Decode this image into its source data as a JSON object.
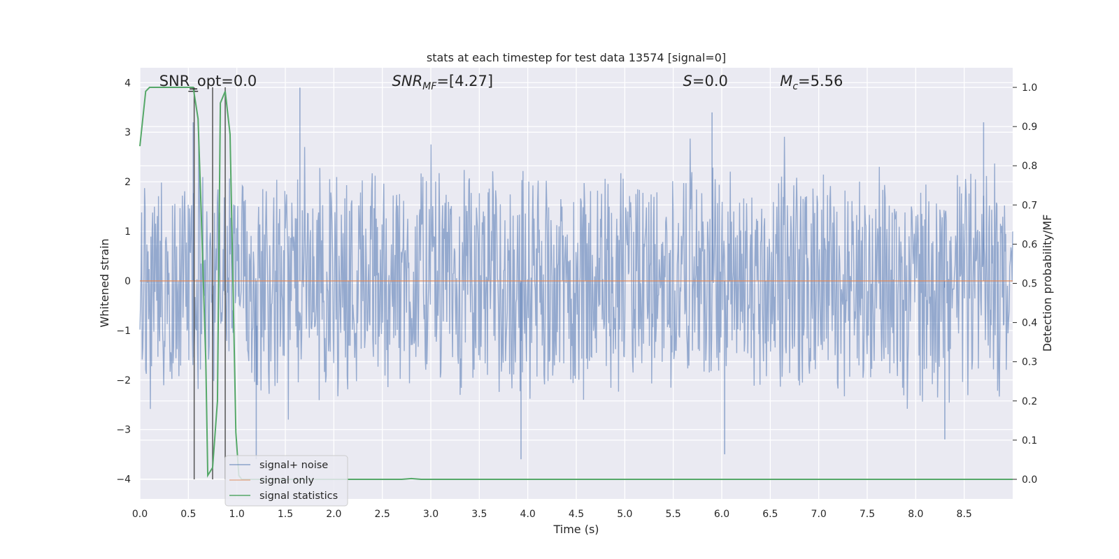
{
  "chart_data": {
    "type": "line",
    "title": "stats at each timestep for test data 13574 [signal=0]",
    "xlabel": "Time (s)",
    "ylabel_left": "Whitened strain",
    "ylabel_right": "Detection probability/MF",
    "xlim": [
      0.0,
      9.0
    ],
    "ylim_left": [
      -4.4,
      4.3
    ],
    "ylim_right": [
      -0.05,
      1.05
    ],
    "xticks": [
      "0.0",
      "0.5",
      "1.0",
      "1.5",
      "2.0",
      "2.5",
      "3.0",
      "3.5",
      "4.0",
      "4.5",
      "5.0",
      "5.5",
      "6.0",
      "6.5",
      "7.0",
      "7.5",
      "8.0",
      "8.5"
    ],
    "xtick_values": [
      0.0,
      0.5,
      1.0,
      1.5,
      2.0,
      2.5,
      3.0,
      3.5,
      4.0,
      4.5,
      5.0,
      5.5,
      6.0,
      6.5,
      7.0,
      7.5,
      8.0,
      8.5
    ],
    "yticks_left": [
      "−4",
      "−3",
      "−2",
      "−1",
      "0",
      "1",
      "2",
      "3",
      "4"
    ],
    "ytick_values_left": [
      -4,
      -3,
      -2,
      -1,
      0,
      1,
      2,
      3,
      4
    ],
    "yticks_right": [
      "0.0",
      "0.1",
      "0.2",
      "0.3",
      "0.4",
      "0.5",
      "0.6",
      "0.7",
      "0.8",
      "0.9",
      "1.0"
    ],
    "ytick_values_right": [
      0.0,
      0.1,
      0.2,
      0.3,
      0.4,
      0.5,
      0.6,
      0.7,
      0.8,
      0.9,
      1.0
    ],
    "grid": true,
    "legend_position": "lower-left",
    "annotations": [
      {
        "text": "SNR_opt=0.0",
        "x": 0.2
      },
      {
        "text": "SNR",
        "sub": "MF",
        "suffix": "=[4.27]",
        "italic": true,
        "x": 2.6
      },
      {
        "text": "S",
        "suffix": "=0.0",
        "italic": true,
        "x": 5.6
      },
      {
        "text": "M",
        "sub": "c",
        "suffix": "=5.56",
        "italic": true,
        "x": 6.6
      }
    ],
    "series": [
      {
        "name": "signal+ noise",
        "color": "#4c72b0",
        "axis": "left",
        "amplitude_envelope": {
          "typical_max": 2.0,
          "typical_min": -2.0,
          "peak_max": 3.9,
          "peak_min": -3.6
        },
        "peaks": [
          [
            0.55,
            3.2
          ],
          [
            1.65,
            3.9
          ],
          [
            1.2,
            -3.6
          ],
          [
            3.93,
            -3.6
          ],
          [
            6.03,
            -3.5
          ],
          [
            5.9,
            3.4
          ],
          [
            8.7,
            3.2
          ],
          [
            8.3,
            -3.2
          ]
        ]
      },
      {
        "name": "signal only",
        "color": "#dd8452",
        "axis": "left",
        "x": [
          0.0,
          9.0
        ],
        "y": [
          0.0,
          0.0
        ]
      },
      {
        "name": "signal statistics",
        "color": "#55a868",
        "axis": "right",
        "x": [
          0.0,
          0.06,
          0.1,
          0.2,
          0.4,
          0.55,
          0.6,
          0.63,
          0.68,
          0.7,
          0.75,
          0.8,
          0.83,
          0.88,
          0.93,
          0.96,
          0.99,
          1.02,
          1.05,
          2.7,
          2.8,
          2.9,
          9.0
        ],
        "y": [
          0.85,
          0.99,
          1.0,
          1.0,
          1.0,
          1.0,
          0.92,
          0.7,
          0.3,
          0.01,
          0.03,
          0.2,
          0.96,
          0.99,
          0.88,
          0.5,
          0.12,
          0.01,
          0.0,
          0.0,
          0.002,
          0.0,
          0.0
        ]
      }
    ],
    "markers": [
      {
        "kind": "vline",
        "x": 0.56
      },
      {
        "kind": "vline",
        "x": 0.75
      },
      {
        "kind": "vline",
        "x": 0.88
      }
    ]
  }
}
